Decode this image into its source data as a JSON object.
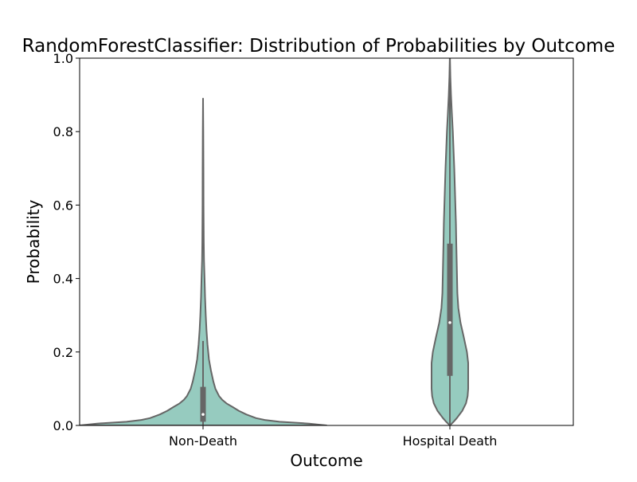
{
  "chart_data": {
    "type": "violin",
    "title": "RandomForestClassifier: Distribution of Probabilities by Outcome",
    "xlabel": "Outcome",
    "ylabel": "Probability",
    "ylim": [
      0.0,
      1.0
    ],
    "yticks": [
      "0.0",
      "0.2",
      "0.4",
      "0.6",
      "0.8",
      "1.0"
    ],
    "categories": [
      "Non-Death",
      "Hospital Death"
    ],
    "colors": {
      "fill": "#96cbbf",
      "edge": "#666666",
      "box": "#666666",
      "median": "#ffffff"
    },
    "grid": false,
    "violins": [
      {
        "category": "Non-Death",
        "whisker_low": 0.0,
        "q1": 0.01,
        "median": 0.03,
        "q3": 0.105,
        "whisker_high": 0.23,
        "y_max": 0.89,
        "density_y": [
          0.0,
          0.005,
          0.01,
          0.015,
          0.02,
          0.03,
          0.04,
          0.05,
          0.06,
          0.07,
          0.08,
          0.1,
          0.12,
          0.15,
          0.18,
          0.22,
          0.26,
          0.3,
          0.35,
          0.4,
          0.45,
          0.5,
          0.6,
          0.7,
          0.8,
          0.89
        ],
        "density_w": [
          1.0,
          0.86,
          0.62,
          0.5,
          0.43,
          0.35,
          0.29,
          0.24,
          0.19,
          0.155,
          0.13,
          0.1,
          0.083,
          0.064,
          0.048,
          0.036,
          0.028,
          0.022,
          0.016,
          0.012,
          0.008,
          0.006,
          0.004,
          0.003,
          0.002,
          0.0
        ]
      },
      {
        "category": "Hospital Death",
        "whisker_low": 0.0,
        "q1": 0.135,
        "median": 0.28,
        "q3": 0.495,
        "whisker_high": 1.0,
        "y_max": 1.0,
        "density_y": [
          0.0,
          0.01,
          0.02,
          0.04,
          0.06,
          0.08,
          0.1,
          0.13,
          0.17,
          0.2,
          0.24,
          0.28,
          0.32,
          0.36,
          0.4,
          0.45,
          0.5,
          0.55,
          0.6,
          0.65,
          0.7,
          0.75,
          0.8,
          0.85,
          0.9,
          0.95,
          1.0
        ],
        "density_w": [
          0.0,
          0.2,
          0.38,
          0.68,
          0.88,
          0.97,
          1.0,
          1.0,
          1.0,
          0.93,
          0.76,
          0.58,
          0.46,
          0.41,
          0.39,
          0.37,
          0.35,
          0.33,
          0.3,
          0.27,
          0.24,
          0.2,
          0.16,
          0.11,
          0.06,
          0.025,
          0.005
        ]
      }
    ]
  }
}
